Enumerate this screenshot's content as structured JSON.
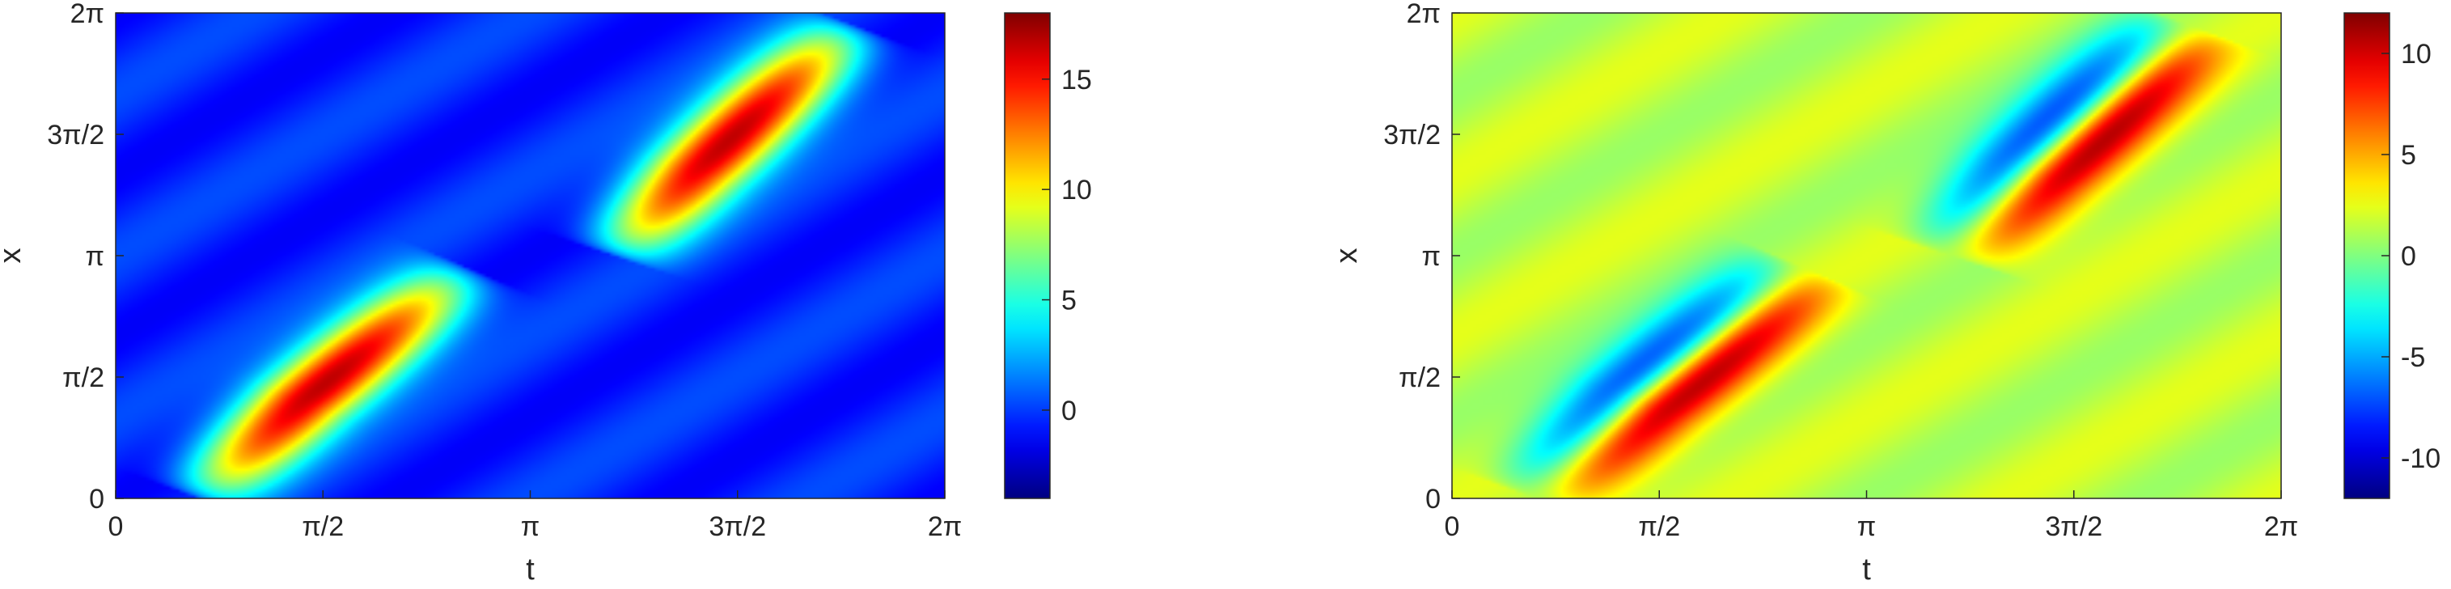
{
  "chart_data": [
    {
      "type": "heatmap",
      "colormap": "jet",
      "xlabel": "t",
      "ylabel": "x",
      "xlim_over_pi": [
        0,
        2
      ],
      "ylim_over_pi": [
        0,
        2
      ],
      "x_ticks": [
        {
          "value_over_pi": 0,
          "label": "0"
        },
        {
          "value_over_pi": 0.5,
          "label": "π/2"
        },
        {
          "value_over_pi": 1,
          "label": "π"
        },
        {
          "value_over_pi": 1.5,
          "label": "3π/2"
        },
        {
          "value_over_pi": 2,
          "label": "2π"
        }
      ],
      "y_ticks": [
        {
          "value_over_pi": 0,
          "label": "0"
        },
        {
          "value_over_pi": 0.5,
          "label": "π/2"
        },
        {
          "value_over_pi": 1,
          "label": "π"
        },
        {
          "value_over_pi": 1.5,
          "label": "3π/2"
        },
        {
          "value_over_pi": 2,
          "label": "2π"
        }
      ],
      "color_range": [
        -4,
        18
      ],
      "colorbar_ticks": [
        {
          "value": 15,
          "label": "15"
        },
        {
          "value": 10,
          "label": "10"
        },
        {
          "value": 5,
          "label": "5"
        },
        {
          "value": 0,
          "label": "0"
        }
      ],
      "field": {
        "kind": "positive",
        "base": -0.5,
        "wave_amp": -1.8,
        "ridges": [
          {
            "peak": 18,
            "path": [
              [
                0.2,
                0.0
              ],
              [
                0.45,
                0.4
              ],
              [
                0.85,
                0.95
              ]
            ]
          },
          {
            "peak": 18,
            "path": [
              [
                1.2,
                1.0
              ],
              [
                1.4,
                1.35
              ],
              [
                1.78,
                1.95
              ]
            ]
          }
        ]
      }
    },
    {
      "type": "heatmap",
      "colormap": "jet",
      "xlabel": "t",
      "ylabel": "x",
      "xlim_over_pi": [
        0,
        2
      ],
      "ylim_over_pi": [
        0,
        2
      ],
      "x_ticks": [
        {
          "value_over_pi": 0,
          "label": "0"
        },
        {
          "value_over_pi": 0.5,
          "label": "π/2"
        },
        {
          "value_over_pi": 1,
          "label": "π"
        },
        {
          "value_over_pi": 1.5,
          "label": "3π/2"
        },
        {
          "value_over_pi": 2,
          "label": "2π"
        }
      ],
      "y_ticks": [
        {
          "value_over_pi": 0,
          "label": "0"
        },
        {
          "value_over_pi": 0.5,
          "label": "π/2"
        },
        {
          "value_over_pi": 1,
          "label": "π"
        },
        {
          "value_over_pi": 1.5,
          "label": "3π/2"
        },
        {
          "value_over_pi": 2,
          "label": "2π"
        }
      ],
      "color_range": [
        -12,
        12
      ],
      "colorbar_ticks": [
        {
          "value": 10,
          "label": "10"
        },
        {
          "value": 5,
          "label": "5"
        },
        {
          "value": 0,
          "label": "0"
        },
        {
          "value": -5,
          "label": "-5"
        },
        {
          "value": -10,
          "label": "-10"
        }
      ],
      "field": {
        "kind": "dipole",
        "base": 1.5,
        "wave_amp": 1.8,
        "ridges": [
          {
            "peak": 13,
            "path": [
              [
                0.2,
                0.0
              ],
              [
                0.45,
                0.4
              ],
              [
                0.85,
                0.95
              ]
            ]
          },
          {
            "peak": 13,
            "path": [
              [
                1.2,
                1.0
              ],
              [
                1.4,
                1.35
              ],
              [
                1.78,
                1.95
              ]
            ]
          }
        ]
      }
    }
  ]
}
